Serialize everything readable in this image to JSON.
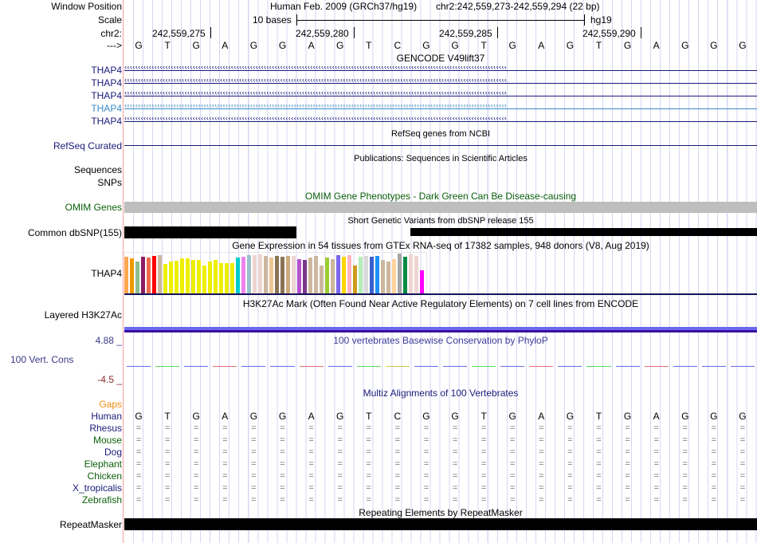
{
  "header": {
    "window_position_label": "Window Position",
    "assembly": "Human Feb. 2009 (GRCh37/hg19)",
    "position": "chr2:242,559,273-242,559,294 (22 bp)",
    "scale_label": "Scale",
    "scale_text": "10 bases",
    "scale_db": "hg19",
    "chrom_label": "chr2:",
    "strand_label": "--->",
    "coords": [
      "242,559,275",
      "242,559,280",
      "242,559,285",
      "242,559,290"
    ]
  },
  "sequence": [
    "G",
    "T",
    "G",
    "A",
    "G",
    "G",
    "A",
    "G",
    "T",
    "C",
    "G",
    "G",
    "T",
    "G",
    "A",
    "G",
    "T",
    "G",
    "A",
    "G",
    "G",
    "G"
  ],
  "tracks": {
    "gencode": {
      "title": "GENCODE V49lift37",
      "genes": [
        {
          "label": "THAP4",
          "color": "#1a1a7a"
        },
        {
          "label": "THAP4",
          "color": "#1a1a7a"
        },
        {
          "label": "THAP4",
          "color": "#1a1a7a"
        },
        {
          "label": "THAP4",
          "color": "#3a8ac4"
        },
        {
          "label": "THAP4",
          "color": "#1a1a7a"
        }
      ]
    },
    "refseq": {
      "title": "RefSeq genes from NCBI",
      "label": "RefSeq Curated"
    },
    "publications": {
      "title": "Publications: Sequences in Scientific Articles",
      "label1": "Sequences",
      "label2": "SNPs"
    },
    "omim": {
      "title": "OMIM Gene Phenotypes - Dark Green Can Be Disease-causing",
      "label": "OMIM Genes"
    },
    "dbsnp": {
      "title": "Short Genetic Variants from dbSNP release 155",
      "label": "Common dbSNP(155)"
    },
    "gtex": {
      "title": "Gene Expression in 54 tissues from GTEx RNA-seq of 17382 samples, 948 donors (V8, Aug 2019)",
      "label": "THAP4",
      "values": [
        143,
        137,
        125,
        143,
        140,
        146,
        149,
        116,
        125,
        128,
        137,
        137,
        131,
        131,
        110,
        125,
        131,
        119,
        119,
        119,
        140,
        143,
        149,
        149,
        152,
        146,
        140,
        146,
        143,
        146,
        146,
        134,
        131,
        140,
        146,
        110,
        140,
        134,
        149,
        143,
        149,
        110,
        143,
        146,
        143,
        146,
        131,
        125,
        134,
        155,
        143,
        152,
        146,
        89
      ],
      "colors": [
        "#FFA54F",
        "#EE9A00",
        "#8FBC8F",
        "#8B1C62",
        "#EE6A50",
        "#FF0000",
        "#CDB79E",
        "#EEEE00",
        "#EEEE00",
        "#EEEE00",
        "#EEEE00",
        "#EEEE00",
        "#EEEE00",
        "#EEEE00",
        "#EEEE00",
        "#EEEE00",
        "#EEEE00",
        "#EEEE00",
        "#EEEE00",
        "#EEEE00",
        "#00CDCD",
        "#EE82EE",
        "#9AC0CD",
        "#EED5D2",
        "#EED5D2",
        "#CDB79E",
        "#EEC591",
        "#8B7355",
        "#8B7355",
        "#CDAA7D",
        "#EED5D2",
        "#B452CD",
        "#7A378B",
        "#CDB79E",
        "#CDB79E",
        "#CDB79E",
        "#9ACD32",
        "#CDB79E",
        "#7A67EE",
        "#FFD700",
        "#FFB6C1",
        "#CD9B1D",
        "#B4EEB4",
        "#D9D9D9",
        "#3A5FCD",
        "#1E90FF",
        "#CDB79E",
        "#CDB79E",
        "#FFD39B",
        "#A6A6A6",
        "#008B45",
        "#EED5D2",
        "#EED5D2",
        "#FF00FF"
      ]
    },
    "h3k27ac": {
      "title": "H3K27Ac Mark (Often Found Near Active Regulatory Elements) on 7 cell lines from ENCODE",
      "label": "Layered H3K27Ac"
    },
    "phylop": {
      "title": "100 vertebrates Basewise Conservation by PhyloP",
      "label": "100 Vert. Cons",
      "max": "4.88 _",
      "min": "-4.5 _",
      "base_colors": {
        "A": "#e04040",
        "C": "#b8b820",
        "G": "#3a3ae0",
        "T": "#20d020"
      }
    },
    "multiz": {
      "title": "Multiz Alignments of 100 Vertebrates",
      "gaps_label": "Gaps",
      "species": [
        {
          "name": "Human",
          "color": "#1a1a7a"
        },
        {
          "name": "Rhesus",
          "color": "#1a1a7a"
        },
        {
          "name": "Mouse",
          "color": "#0a5f0a"
        },
        {
          "name": "Dog",
          "color": "#1a1a7a"
        },
        {
          "name": "Elephant",
          "color": "#0a5f0a"
        },
        {
          "name": "Chicken",
          "color": "#0a5f0a"
        },
        {
          "name": "X_tropicalis",
          "color": "#1a1a7a"
        },
        {
          "name": "Zebrafish",
          "color": "#0a5f0a"
        }
      ],
      "match_symbol": "="
    },
    "repeatmasker": {
      "title": "Repeating Elements by RepeatMasker",
      "label": "RepeatMasker"
    }
  }
}
